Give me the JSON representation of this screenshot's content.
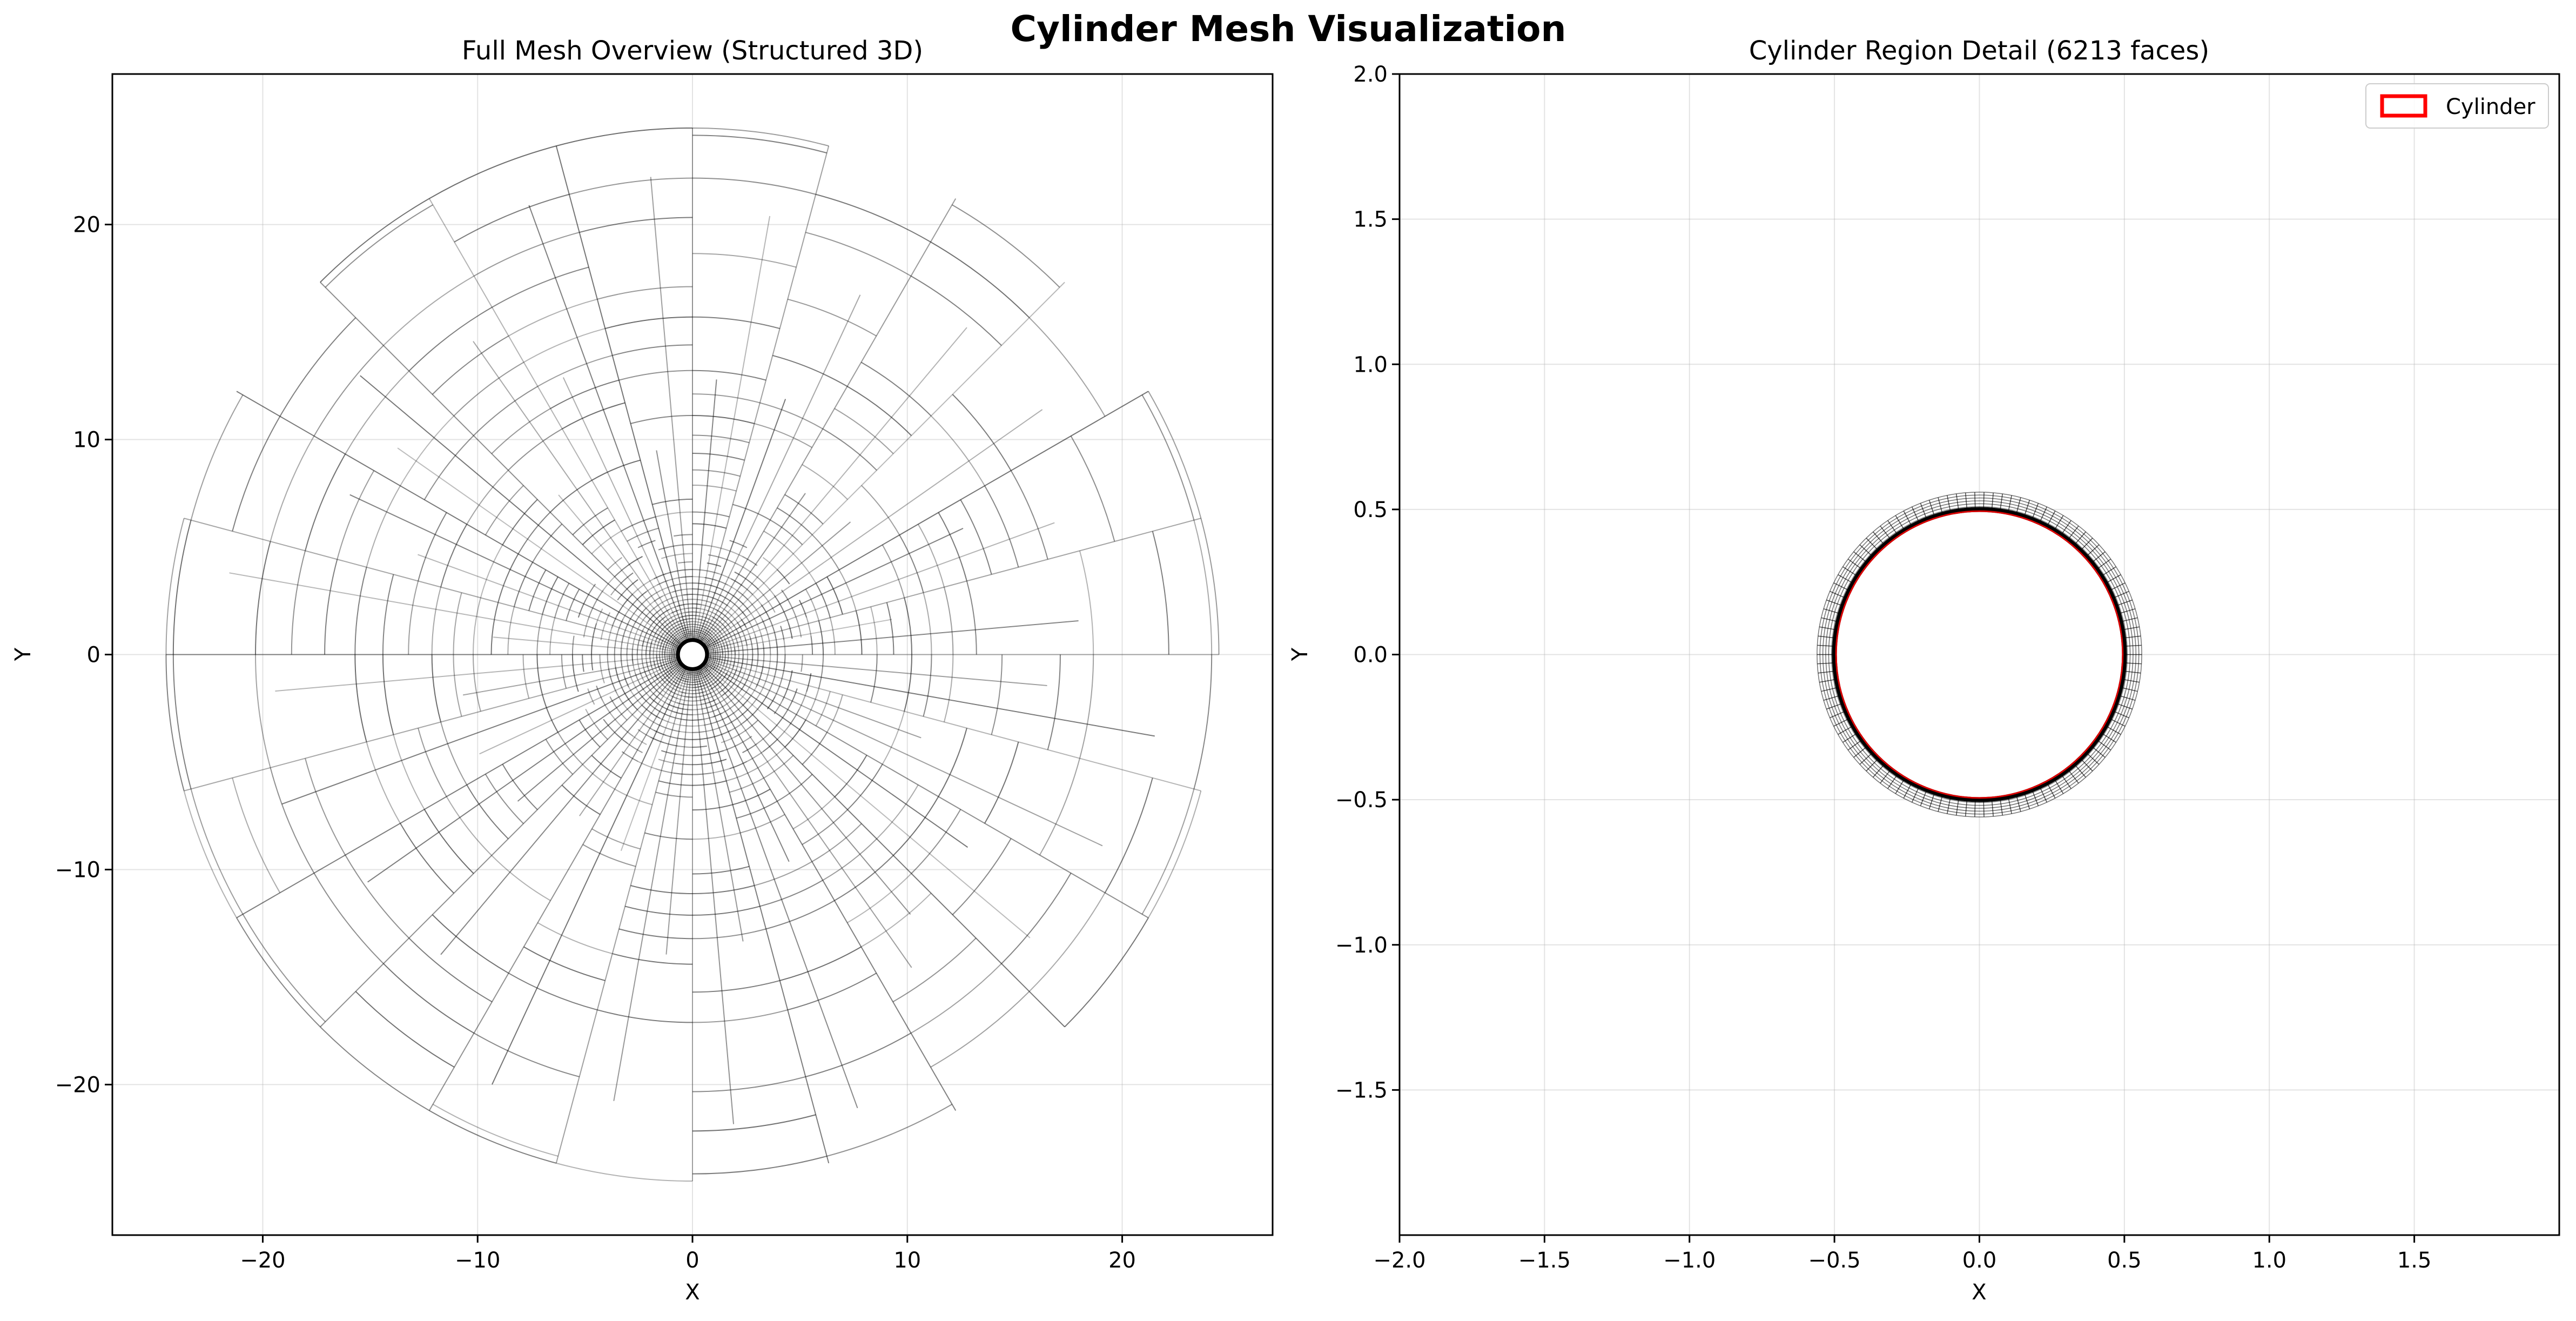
{
  "figure": {
    "suptitle": "Cylinder Mesh Visualization"
  },
  "chart_data": [
    {
      "type": "mesh",
      "title": "Full Mesh Overview (Structured 3D)",
      "xlabel": "X",
      "ylabel": "Y",
      "xlim": [
        -27,
        27
      ],
      "ylim": [
        -27,
        27
      ],
      "xticks": [
        -20,
        -10,
        0,
        10,
        20
      ],
      "yticks": [
        -20,
        -10,
        0,
        10,
        20
      ],
      "xtick_labels": [
        "−20",
        "−10",
        "0",
        "10",
        "20"
      ],
      "ytick_labels": [
        "−20",
        "−10",
        "0",
        "10",
        "20"
      ],
      "grid": true,
      "cylinder_radius": 0.5,
      "outer_radius": 24.5,
      "line_color": "#000000"
    },
    {
      "type": "mesh",
      "title": "Cylinder Region Detail (6213 faces)",
      "xlabel": "X",
      "ylabel": "Y",
      "xlim": [
        -2,
        2
      ],
      "ylim": [
        -2,
        2
      ],
      "xticks": [
        -2.0,
        -1.5,
        -1.0,
        -0.5,
        0.0,
        0.5,
        1.0,
        1.5
      ],
      "yticks": [
        -1.5,
        -1.0,
        -0.5,
        0.0,
        0.5,
        1.0,
        1.5,
        2.0
      ],
      "xtick_labels": [
        "−2.0",
        "−1.5",
        "−1.0",
        "−0.5",
        "0.0",
        "0.5",
        "1.0",
        "1.5"
      ],
      "ytick_labels": [
        "−1.5",
        "−1.0",
        "−0.5",
        "0.0",
        "0.5",
        "1.0",
        "1.5",
        "2.0"
      ],
      "grid": true,
      "legend": {
        "placement": "upper-right",
        "entries": [
          {
            "label": "Cylinder",
            "color": "#ff0000"
          }
        ]
      },
      "cylinder_radius": 0.5,
      "boundary_layer_outer_radius": 0.56,
      "line_color": "#000000",
      "cylinder_color": "#ff0000"
    }
  ]
}
